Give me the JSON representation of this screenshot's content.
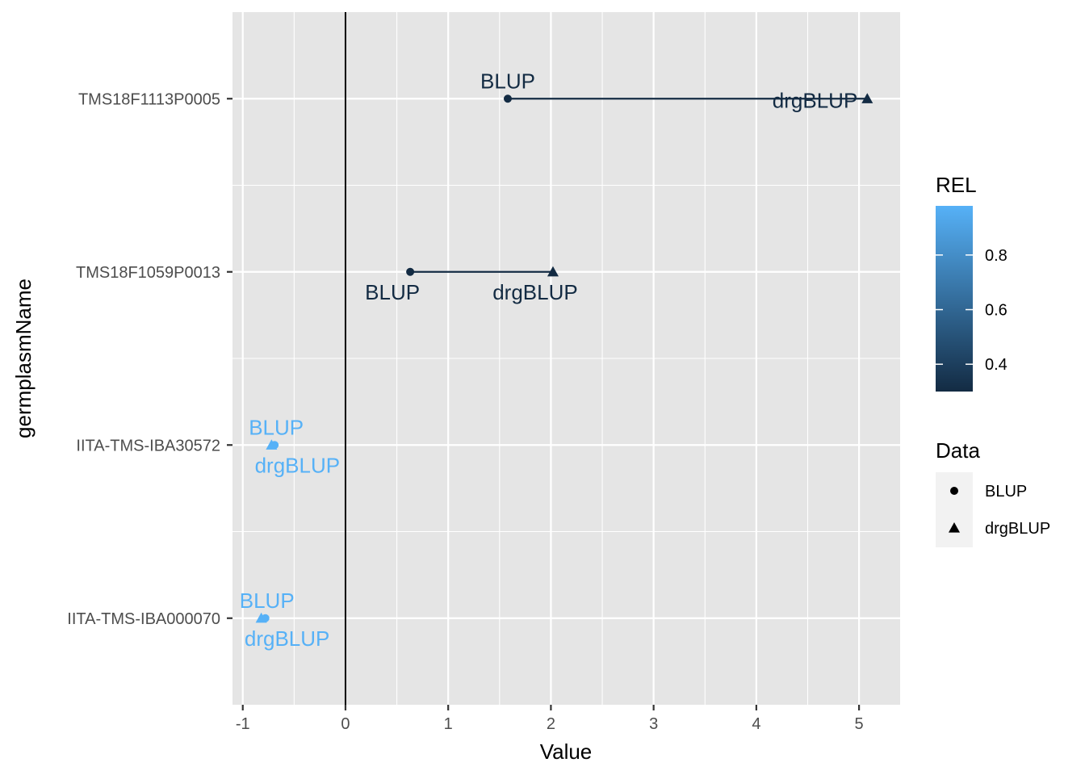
{
  "chart_data": {
    "type": "scatter",
    "title": "",
    "xlabel": "Value",
    "ylabel": "germplasmName",
    "xlim": [
      -1.1,
      5.4
    ],
    "x_ticks": [
      -1,
      0,
      1,
      2,
      3,
      4,
      5
    ],
    "x_tick_labels": [
      "-1",
      "0",
      "1",
      "2",
      "3",
      "4",
      "5"
    ],
    "categories": [
      "IITA-TMS-IBA000070",
      "IITA-TMS-IBA30572",
      "TMS18F1059P0013",
      "TMS18F1113P0005"
    ],
    "vline_x": 0,
    "grid": true,
    "series": [
      {
        "name": "BLUP",
        "shape": "circle",
        "values": [
          -0.78,
          -0.69,
          0.63,
          1.58
        ]
      },
      {
        "name": "drgBLUP",
        "shape": "triangle",
        "values": [
          -0.82,
          -0.72,
          2.02,
          5.08
        ]
      }
    ],
    "rel": [
      0.98,
      0.98,
      0.3,
      0.3
    ],
    "point_labels": [
      {
        "category": "TMS18F1113P0005",
        "series": "BLUP",
        "text": "BLUP",
        "position": "above"
      },
      {
        "category": "TMS18F1113P0005",
        "series": "drgBLUP",
        "text": "drgBLUP",
        "position": "left"
      },
      {
        "category": "TMS18F1059P0013",
        "series": "BLUP",
        "text": "BLUP",
        "position": "below"
      },
      {
        "category": "TMS18F1059P0013",
        "series": "drgBLUP",
        "text": "drgBLUP",
        "position": "below"
      },
      {
        "category": "IITA-TMS-IBA30572",
        "series": "BLUP",
        "text": "BLUP",
        "position": "above"
      },
      {
        "category": "IITA-TMS-IBA30572",
        "series": "drgBLUP",
        "text": "drgBLUP",
        "position": "below"
      },
      {
        "category": "IITA-TMS-IBA000070",
        "series": "BLUP",
        "text": "BLUP",
        "position": "above"
      },
      {
        "category": "IITA-TMS-IBA000070",
        "series": "drgBLUP",
        "text": "drgBLUP",
        "position": "below"
      }
    ],
    "color_legend": {
      "title": "REL",
      "range": [
        0.3,
        0.98
      ],
      "ticks": [
        0.4,
        0.6,
        0.8
      ],
      "tick_labels": [
        "0.4",
        "0.6",
        "0.8"
      ],
      "low_color": "#132b43",
      "high_color": "#56b1f7"
    },
    "shape_legend": {
      "title": "Data",
      "items": [
        {
          "label": "BLUP",
          "shape": "circle"
        },
        {
          "label": "drgBLUP",
          "shape": "triangle"
        }
      ]
    },
    "panel_background": "#e5e5e5",
    "grid_color": "#ffffff"
  }
}
